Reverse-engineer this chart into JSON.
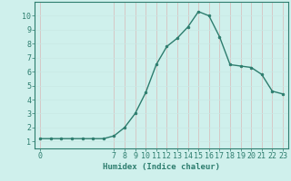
{
  "x": [
    0,
    1,
    2,
    3,
    4,
    5,
    6,
    7,
    8,
    9,
    10,
    11,
    12,
    13,
    14,
    15,
    16,
    17,
    18,
    19,
    20,
    21,
    22,
    23
  ],
  "y": [
    1.2,
    1.2,
    1.2,
    1.2,
    1.2,
    1.2,
    1.2,
    1.4,
    2.0,
    3.0,
    4.5,
    6.5,
    7.8,
    8.4,
    9.2,
    10.3,
    10.0,
    8.5,
    6.5,
    6.4,
    6.3,
    5.8,
    4.6,
    4.4
  ],
  "line_color": "#2d7d6e",
  "marker": "o",
  "marker_size": 2.0,
  "bg_color": "#cff0ec",
  "grid_color": "#d9b8b8",
  "xlabel": "Humidex (Indice chaleur)",
  "xlim": [
    -0.5,
    23.5
  ],
  "ylim": [
    0.5,
    11.0
  ],
  "yticks": [
    1,
    2,
    3,
    4,
    5,
    6,
    7,
    8,
    9,
    10
  ],
  "xticks": [
    0,
    7,
    8,
    9,
    10,
    11,
    12,
    13,
    14,
    15,
    16,
    17,
    18,
    19,
    20,
    21,
    22,
    23
  ],
  "xlabel_fontsize": 6.5,
  "tick_fontsize": 6.0,
  "line_width": 1.0,
  "spine_color": "#2d7d6e",
  "tick_color": "#2d7d6e"
}
